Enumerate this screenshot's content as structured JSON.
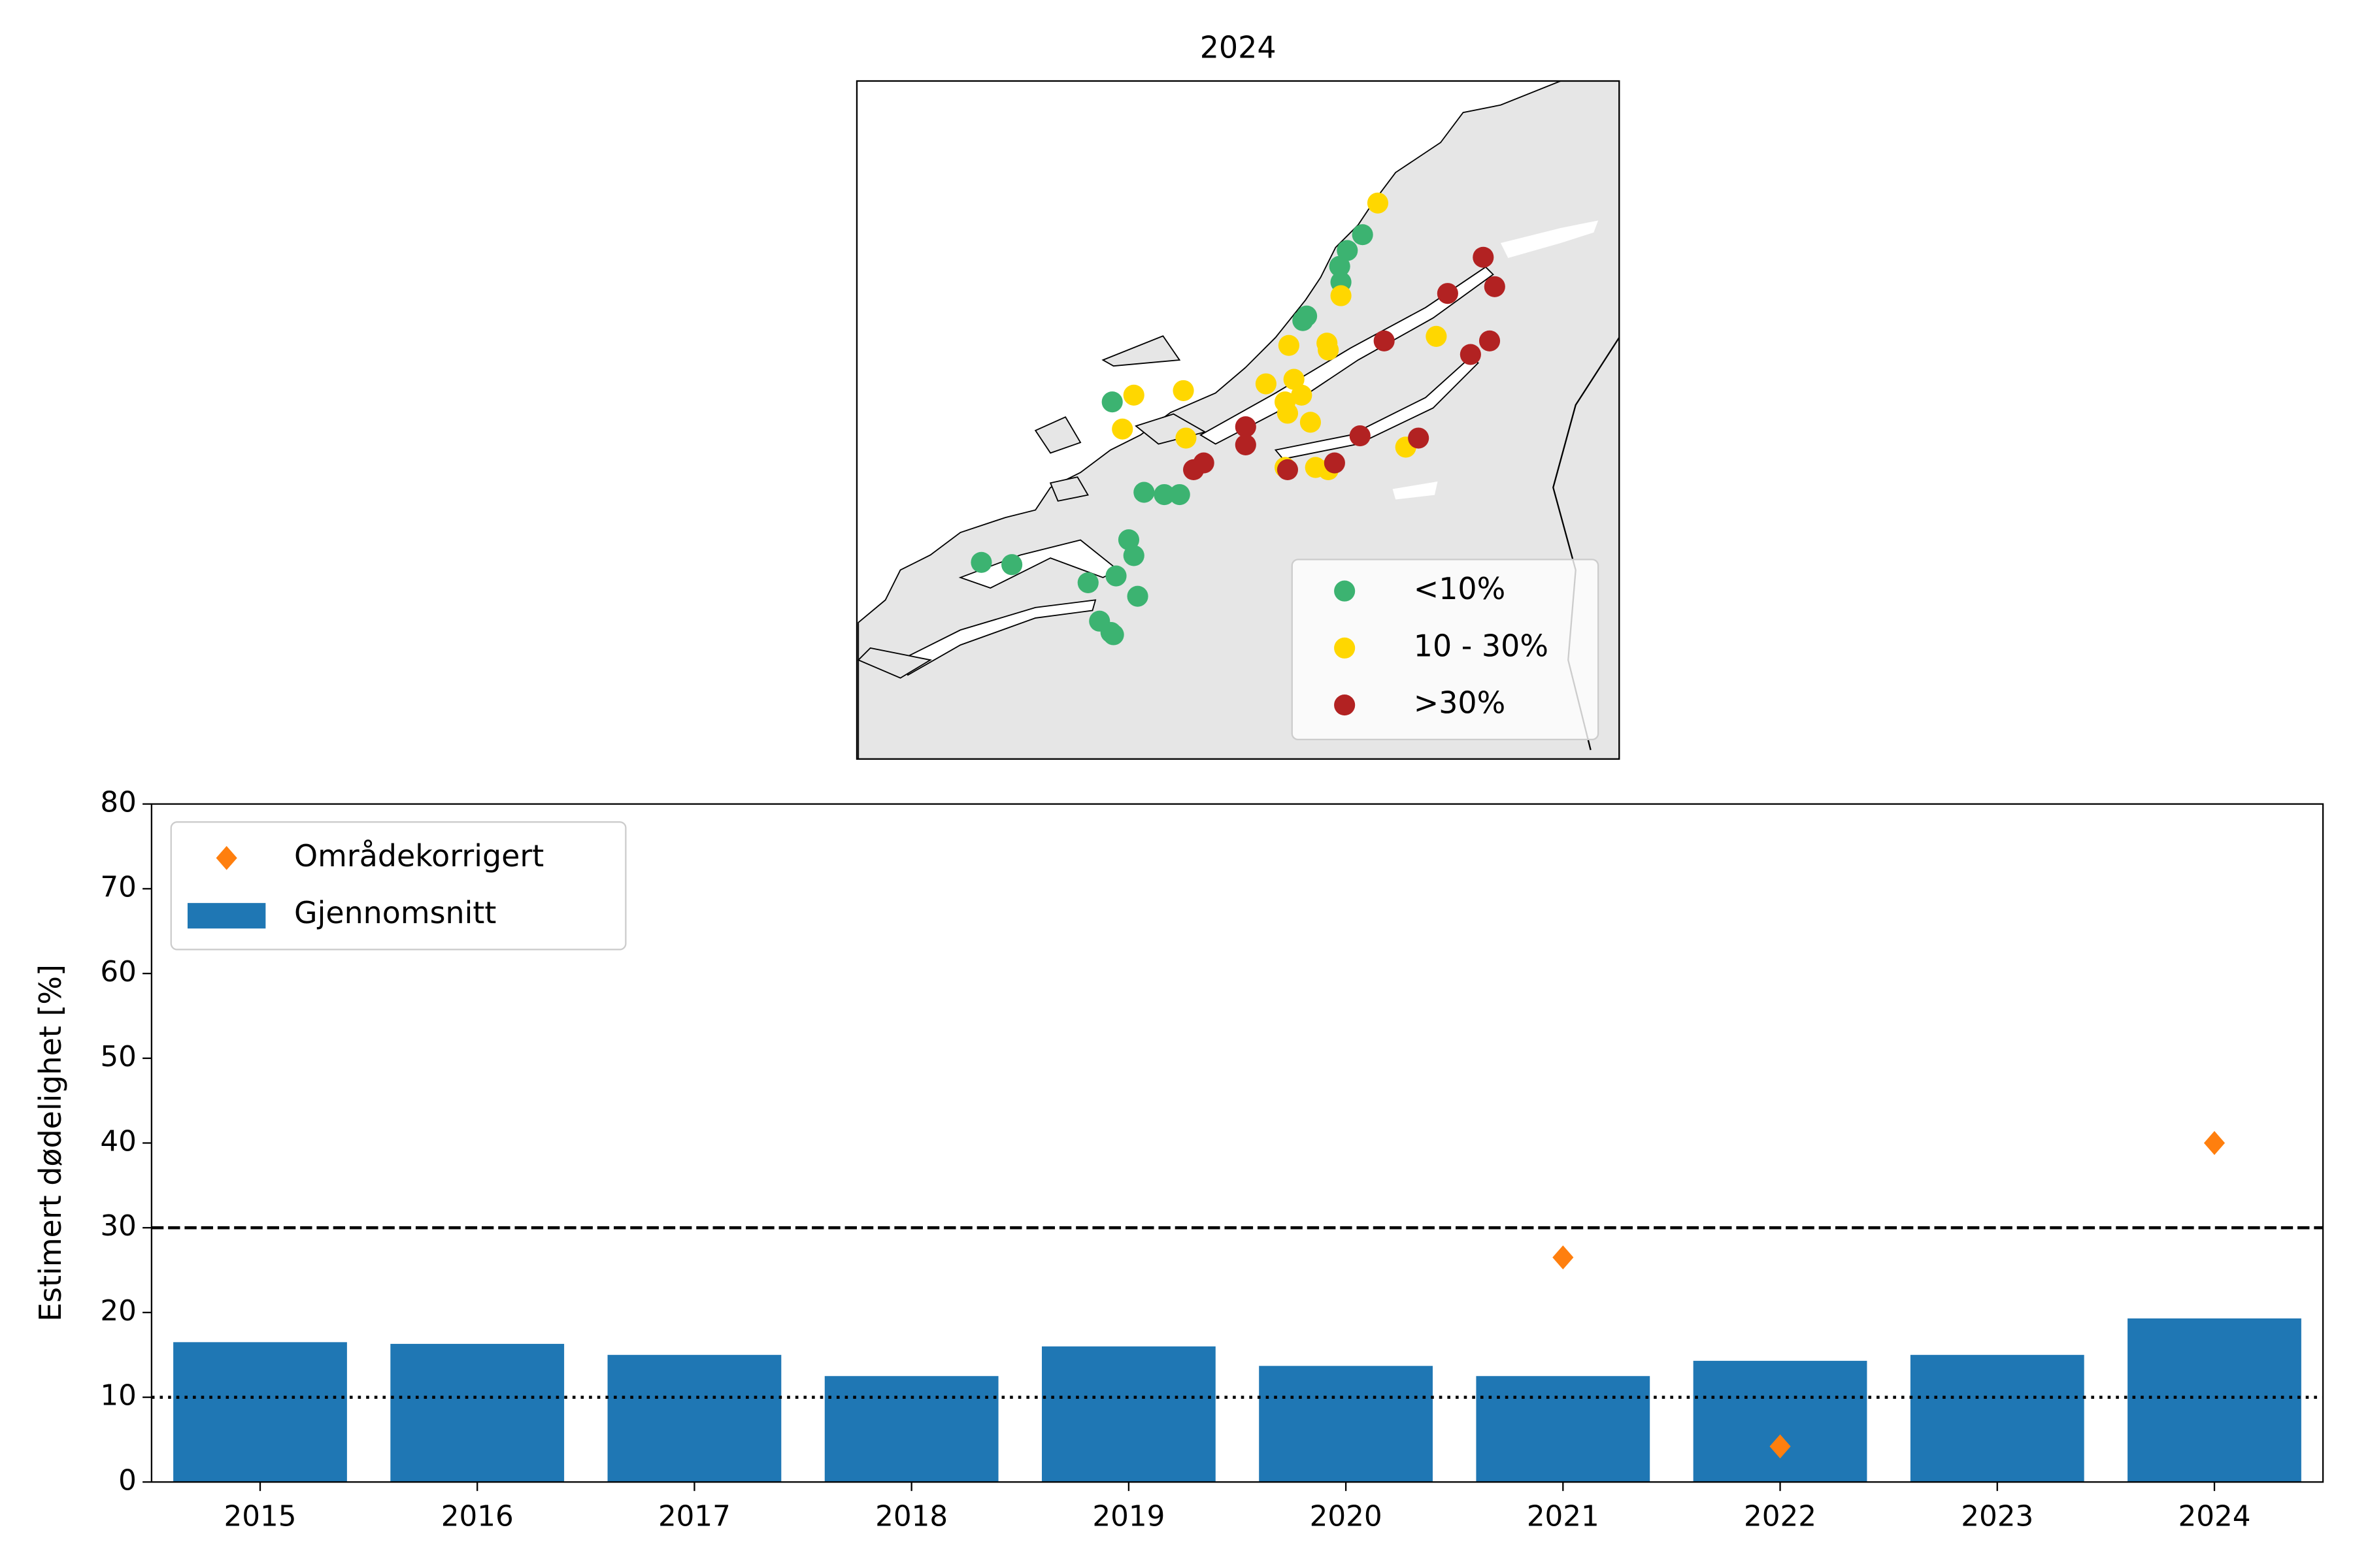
{
  "chart_data": [
    {
      "type": "map",
      "title": "2024",
      "xlim": [
        5,
        11
      ],
      "ylim": [
        62,
        65
      ],
      "legend": "lower right",
      "series": [
        {
          "name": "<10%",
          "color": "#3cb371",
          "x": [
            7.01,
            8.98,
            8.86,
            8.8,
            8.81,
            8.51,
            8.54,
            7.26,
            7.42,
            7.54,
            7.14,
            7.18,
            5.98,
            6.22,
            6.82,
            7.04,
            7.21,
            6.91,
            7.02,
            7.0
          ],
          "y": [
            63.58,
            64.32,
            64.25,
            64.18,
            64.11,
            63.94,
            63.96,
            63.18,
            63.17,
            63.17,
            62.97,
            62.9,
            62.87,
            62.86,
            62.78,
            62.81,
            62.72,
            62.61,
            62.55,
            62.56
          ]
        },
        {
          "name": "10 - 30%",
          "color": "#ffd700",
          "x": [
            9.1,
            7.18,
            7.57,
            7.09,
            7.59,
            8.81,
            8.4,
            8.7,
            8.71,
            8.22,
            8.44,
            8.5,
            8.37,
            8.39,
            8.57,
            8.37,
            8.61,
            8.71,
            9.56,
            9.32
          ],
          "y": [
            64.46,
            63.61,
            63.63,
            63.46,
            63.42,
            64.05,
            63.83,
            63.84,
            63.81,
            63.66,
            63.68,
            63.61,
            63.58,
            63.53,
            63.49,
            63.29,
            63.29,
            63.28,
            63.87,
            63.38
          ]
        },
        {
          "name": ">30%",
          "color": "#b22222",
          "x": [
            9.93,
            9.65,
            10.02,
            9.15,
            9.98,
            9.83,
            8.06,
            8.06,
            7.73,
            7.65,
            8.39,
            8.76,
            8.96,
            9.42
          ],
          "y": [
            64.22,
            64.06,
            64.09,
            63.85,
            63.85,
            63.79,
            63.47,
            63.39,
            63.31,
            63.28,
            63.28,
            63.31,
            63.43,
            63.42
          ]
        }
      ]
    },
    {
      "type": "bar",
      "ylabel": "Estimert dødelighet [%]",
      "categories": [
        "2015",
        "2016",
        "2017",
        "2018",
        "2019",
        "2020",
        "2021",
        "2022",
        "2023",
        "2024"
      ],
      "ylim": [
        0,
        80
      ],
      "yticks": [
        0,
        10,
        20,
        30,
        40,
        50,
        60,
        70,
        80
      ],
      "legend": "upper left",
      "series": [
        {
          "name": "Områdekorrigert",
          "type": "scatter",
          "marker": "diamond",
          "color": "#ff7f0e",
          "values": [
            null,
            null,
            null,
            null,
            null,
            null,
            26.5,
            4.2,
            null,
            40.0
          ]
        },
        {
          "name": "Gjennomsnitt",
          "type": "bar",
          "color": "#1f77b4",
          "values": [
            16.5,
            16.3,
            15.0,
            12.5,
            16.0,
            13.7,
            12.5,
            14.3,
            15.0,
            19.3
          ]
        }
      ],
      "hlines": [
        {
          "value": 30,
          "style": "dashed"
        },
        {
          "value": 10,
          "style": "dotted"
        }
      ]
    }
  ]
}
